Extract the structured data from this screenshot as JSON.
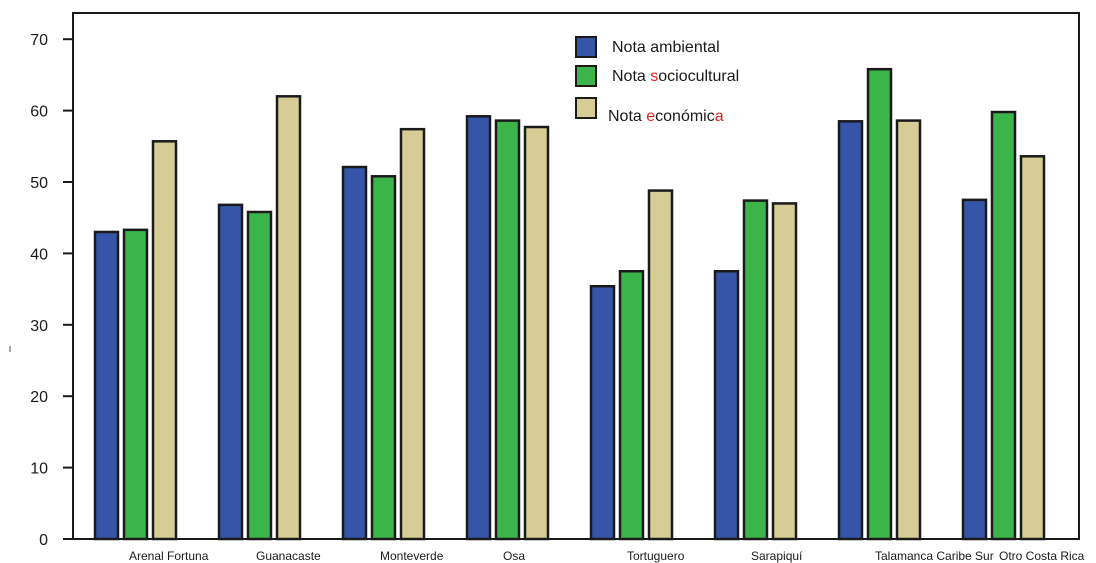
{
  "chart_data": {
    "type": "bar",
    "ylabel": "",
    "ylim": [
      0,
      75
    ],
    "yticks": [
      0,
      10,
      20,
      30,
      40,
      50,
      60,
      70
    ],
    "categories": [
      "Arenal Fortuna",
      "Guanacaste",
      "Monteverde",
      "Osa",
      "Tortuguero",
      "Sarapiquí",
      "Talamanca Caribe Sur",
      "Otro Costa Rica"
    ],
    "series": [
      {
        "name": "Nota ambiental",
        "color": "#3655a8",
        "values": [
          43,
          46.8,
          52.1,
          59.2,
          35.4,
          37.5,
          58.5,
          47.5
        ]
      },
      {
        "name": "Nota sociocultural",
        "color": "#3bb54a",
        "values": [
          43.3,
          45.8,
          50.8,
          58.6,
          37.5,
          47.4,
          65.8,
          59.8
        ]
      },
      {
        "name": "Nota económica",
        "color": "#d5cd95",
        "values": [
          55.7,
          62,
          57.4,
          57.7,
          48.8,
          47,
          58.6,
          53.6
        ]
      }
    ],
    "legend_position": "top-center",
    "grid": false
  }
}
